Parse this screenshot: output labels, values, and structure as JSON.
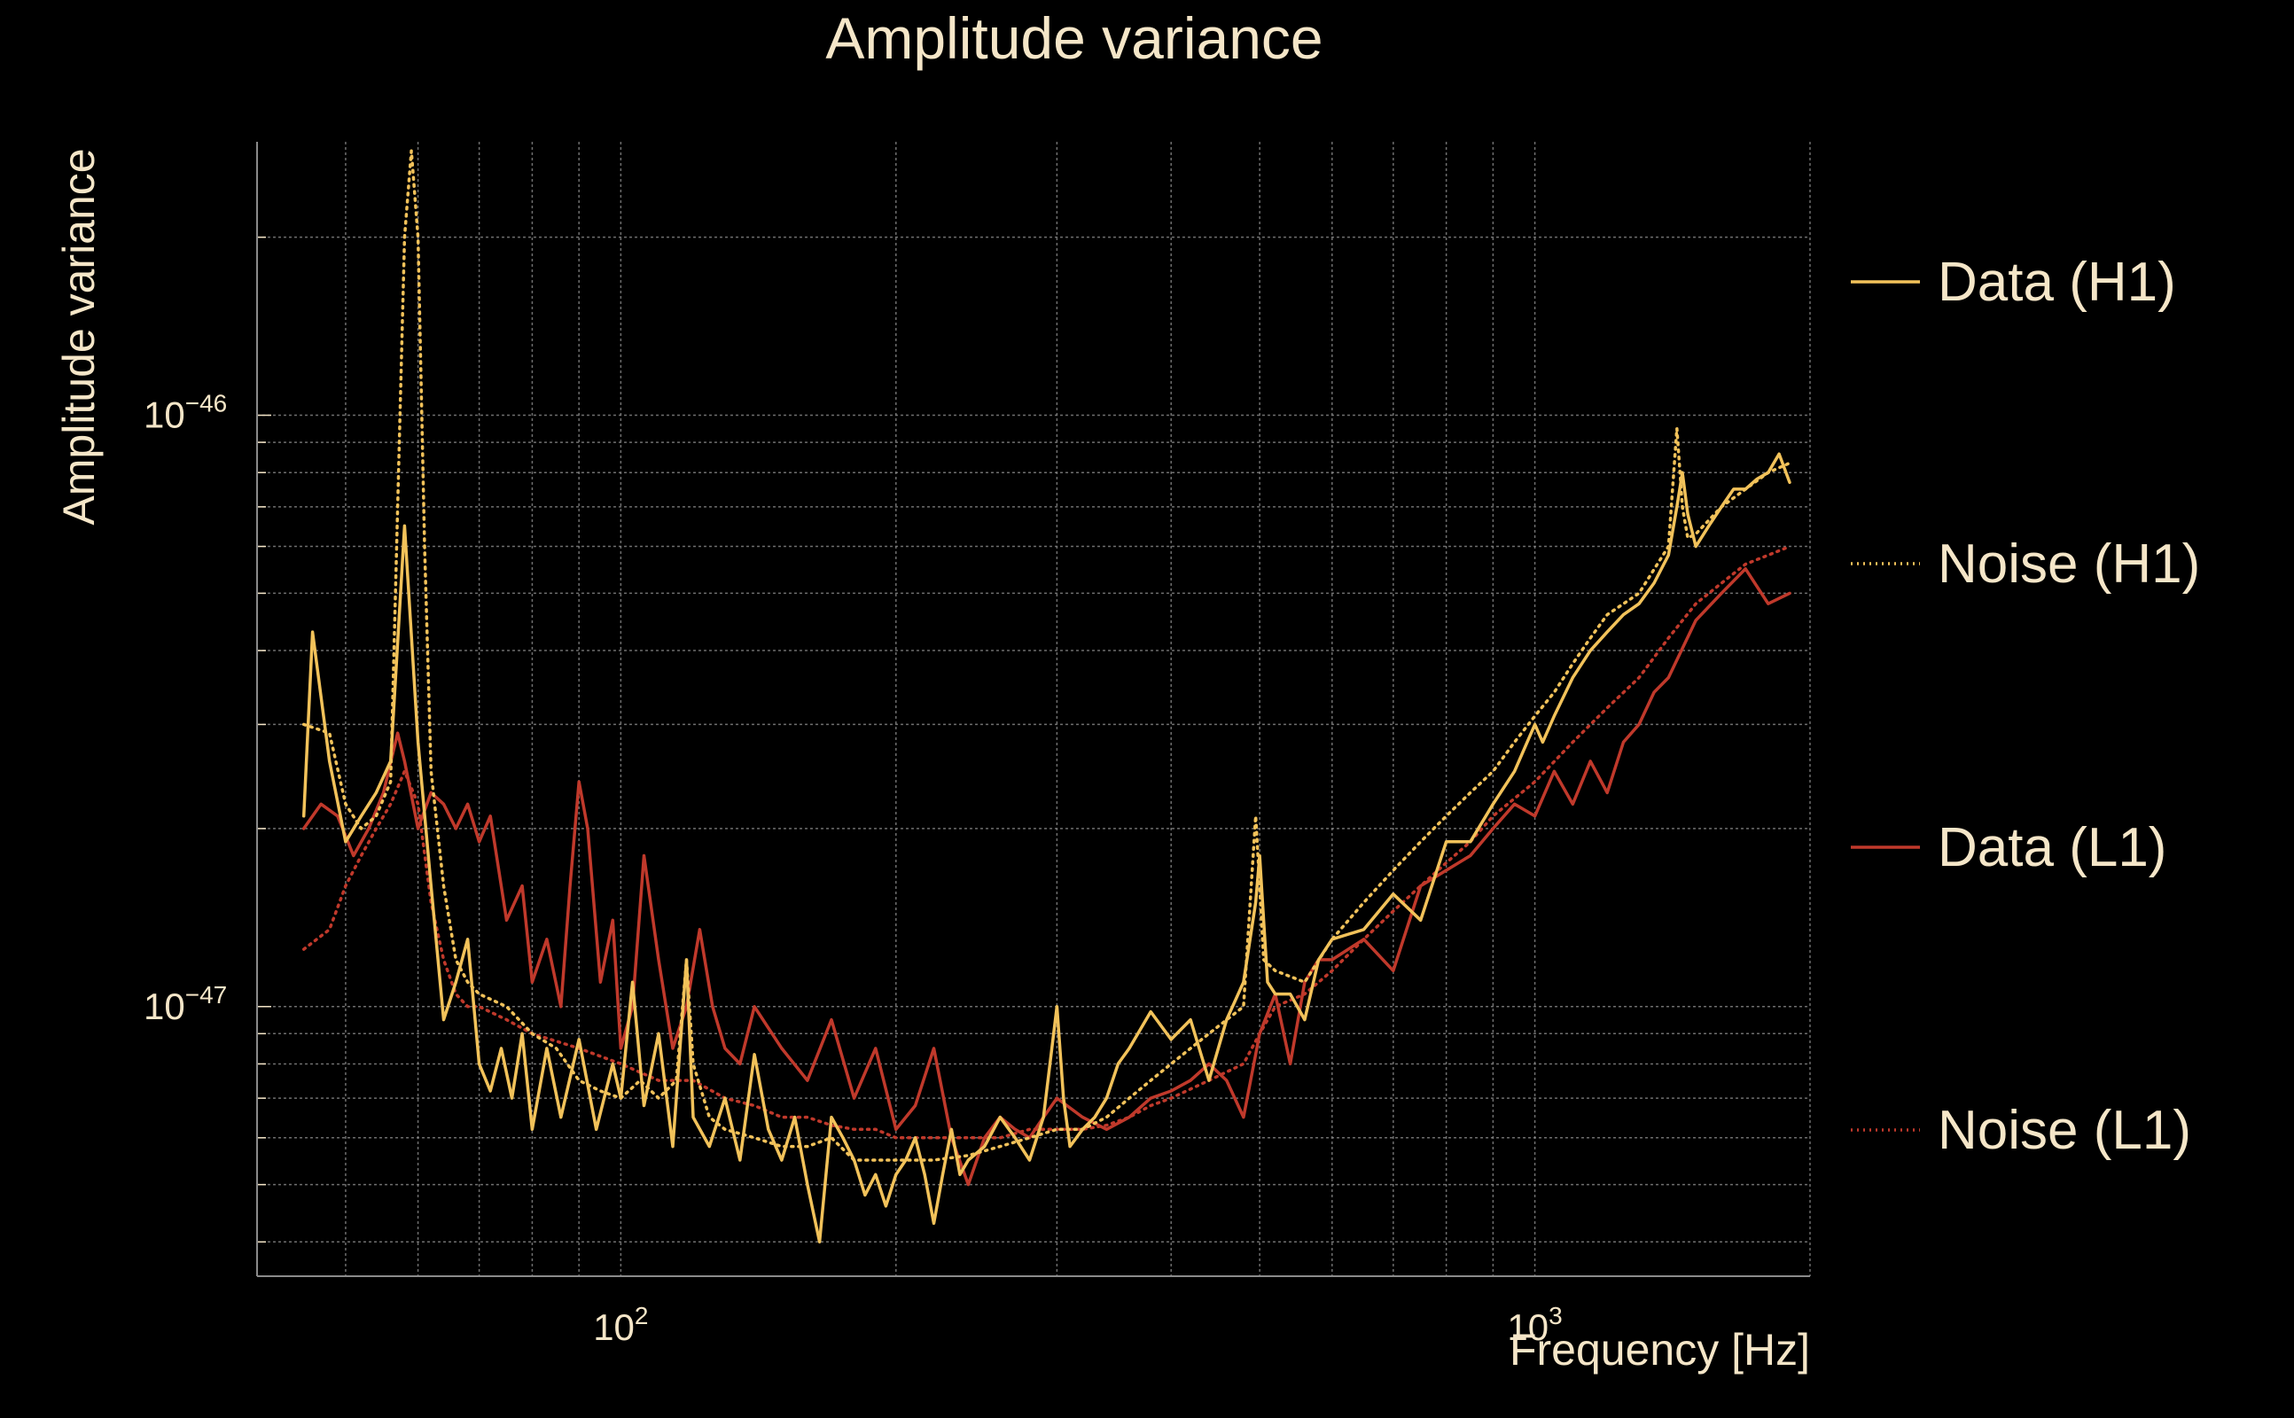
{
  "chart_data": {
    "type": "line",
    "title": "Amplitude variance",
    "xlabel": "Frequency [Hz]",
    "ylabel": "Amplitude variance",
    "x_scale": "log",
    "y_scale": "log",
    "xlim": [
      40,
      2000
    ],
    "ylim": [
      3.5e-48,
      2.9e-46
    ],
    "x_tick_labels": [
      {
        "base": "10",
        "exp": "2",
        "value": 100
      },
      {
        "base": "10",
        "exp": "3",
        "value": 1000
      }
    ],
    "y_tick_labels": [
      {
        "base": "10",
        "exp": "−46",
        "value": 1e-46
      },
      {
        "base": "10",
        "exp": "−47",
        "value": 1e-47
      }
    ],
    "grid": true,
    "legend_position": "right",
    "colors": {
      "background": "#000000",
      "text": "#f5e6c8",
      "grid": "#8a8a8a",
      "h1": "#f2c25a",
      "l1": "#c0392b"
    },
    "series": [
      {
        "name": "Data (H1)",
        "color": "#f2c25a",
        "dash": "solid",
        "x": [
          45,
          46,
          48,
          50,
          52,
          54,
          56,
          58,
          60,
          62,
          64,
          66,
          68,
          70,
          72,
          74,
          76,
          78,
          80,
          83,
          86,
          90,
          94,
          98,
          100,
          103,
          106,
          110,
          114,
          118,
          120,
          125,
          130,
          135,
          140,
          145,
          150,
          155,
          160,
          165,
          170,
          175,
          180,
          185,
          190,
          195,
          200,
          205,
          210,
          215,
          220,
          225,
          230,
          235,
          240,
          250,
          260,
          270,
          280,
          290,
          300,
          305,
          310,
          320,
          330,
          340,
          350,
          360,
          380,
          400,
          420,
          440,
          460,
          480,
          495,
          500,
          505,
          510,
          520,
          540,
          560,
          580,
          600,
          650,
          700,
          750,
          800,
          850,
          900,
          950,
          1000,
          1020,
          1050,
          1100,
          1150,
          1200,
          1250,
          1300,
          1350,
          1400,
          1430,
          1450,
          1470,
          1500,
          1550,
          1600,
          1650,
          1700,
          1750,
          1800,
          1850,
          1900
        ],
        "y": [
          2.1e-47,
          4.3e-47,
          2.6e-47,
          1.9e-47,
          2.1e-47,
          2.3e-47,
          2.6e-47,
          6.5e-47,
          2.8e-47,
          1.6e-47,
          9.5e-48,
          1.1e-47,
          1.3e-47,
          8e-48,
          7.2e-48,
          8.5e-48,
          7e-48,
          9e-48,
          6.2e-48,
          8.5e-48,
          6.5e-48,
          8.8e-48,
          6.2e-48,
          8e-48,
          7e-48,
          1.1e-47,
          6.8e-48,
          9e-48,
          5.8e-48,
          1.2e-47,
          6.5e-48,
          5.8e-48,
          7e-48,
          5.5e-48,
          8.3e-48,
          6.2e-48,
          5.5e-48,
          6.5e-48,
          5e-48,
          4e-48,
          6.5e-48,
          6e-48,
          5.5e-48,
          4.8e-48,
          5.2e-48,
          4.6e-48,
          5.2e-48,
          5.5e-48,
          6e-48,
          5.2e-48,
          4.3e-48,
          5.2e-48,
          6.2e-48,
          5.2e-48,
          5.5e-48,
          5.8e-48,
          6.5e-48,
          6e-48,
          5.5e-48,
          6.5e-48,
          1e-47,
          7e-48,
          5.8e-48,
          6.2e-48,
          6.5e-48,
          7e-48,
          8e-48,
          8.5e-48,
          9.8e-48,
          8.8e-48,
          9.5e-48,
          7.5e-48,
          9.5e-48,
          1.1e-47,
          1.5e-47,
          1.8e-47,
          1.4e-47,
          1.1e-47,
          1.05e-47,
          1.05e-47,
          9.5e-48,
          1.2e-47,
          1.3e-47,
          1.35e-47,
          1.55e-47,
          1.4e-47,
          1.9e-47,
          1.9e-47,
          2.2e-47,
          2.5e-47,
          3e-47,
          2.8e-47,
          3.1e-47,
          3.6e-47,
          4e-47,
          4.3e-47,
          4.6e-47,
          4.8e-47,
          5.2e-47,
          5.8e-47,
          7e-47,
          8e-47,
          6.8e-47,
          6e-47,
          6.5e-47,
          7e-47,
          7.5e-47,
          7.5e-47,
          7.8e-47,
          8e-47,
          8.6e-47,
          7.7e-47
        ]
      },
      {
        "name": "Noise (H1)",
        "color": "#f2c25a",
        "dash": "dotted",
        "x": [
          45,
          48,
          50,
          52,
          54,
          56,
          58,
          59,
          60,
          61,
          62,
          64,
          66,
          68,
          70,
          75,
          80,
          85,
          90,
          95,
          100,
          105,
          110,
          115,
          118,
          120,
          125,
          130,
          140,
          150,
          160,
          170,
          180,
          190,
          200,
          220,
          240,
          260,
          280,
          300,
          320,
          340,
          360,
          380,
          400,
          440,
          480,
          495,
          500,
          505,
          520,
          560,
          600,
          650,
          700,
          750,
          800,
          850,
          900,
          950,
          1000,
          1050,
          1100,
          1150,
          1200,
          1300,
          1400,
          1430,
          1450,
          1470,
          1500,
          1600,
          1700,
          1800,
          1900
        ],
        "y": [
          3e-47,
          2.9e-47,
          2.2e-47,
          2e-47,
          2.1e-47,
          2.4e-47,
          2e-46,
          2.8e-46,
          2e-46,
          6e-47,
          2.5e-47,
          1.6e-47,
          1.2e-47,
          1.1e-47,
          1.05e-47,
          1e-47,
          9e-48,
          8.5e-48,
          7.5e-48,
          7.2e-48,
          7e-48,
          7.5e-48,
          7e-48,
          7.5e-48,
          1.2e-47,
          8e-48,
          6.5e-48,
          6.2e-48,
          6e-48,
          5.8e-48,
          5.8e-48,
          6e-48,
          5.5e-48,
          5.5e-48,
          5.5e-48,
          5.5e-48,
          5.6e-48,
          5.8e-48,
          6e-48,
          6.2e-48,
          6.2e-48,
          6.5e-48,
          7e-48,
          7.5e-48,
          8e-48,
          9e-48,
          1e-47,
          2.1e-47,
          1.6e-47,
          1.2e-47,
          1.15e-47,
          1.1e-47,
          1.3e-47,
          1.5e-47,
          1.7e-47,
          1.9e-47,
          2.1e-47,
          2.3e-47,
          2.5e-47,
          2.8e-47,
          3.1e-47,
          3.4e-47,
          3.8e-47,
          4.2e-47,
          4.6e-47,
          5e-47,
          6e-47,
          9.5e-47,
          7e-47,
          6.2e-47,
          6.3e-47,
          7e-47,
          7.5e-47,
          8e-47,
          8.3e-47
        ]
      },
      {
        "name": "Data (L1)",
        "color": "#c0392b",
        "dash": "solid",
        "x": [
          45,
          47,
          49,
          51,
          53,
          55,
          57,
          58,
          60,
          62,
          64,
          66,
          68,
          70,
          72,
          75,
          78,
          80,
          83,
          86,
          88,
          90,
          92,
          95,
          98,
          100,
          103,
          106,
          110,
          114,
          118,
          122,
          126,
          130,
          135,
          140,
          150,
          160,
          170,
          180,
          190,
          200,
          210,
          220,
          230,
          240,
          250,
          260,
          270,
          280,
          290,
          300,
          320,
          340,
          360,
          380,
          400,
          420,
          440,
          460,
          480,
          500,
          520,
          540,
          560,
          580,
          600,
          650,
          700,
          750,
          800,
          850,
          900,
          950,
          1000,
          1050,
          1100,
          1150,
          1200,
          1250,
          1300,
          1350,
          1400,
          1500,
          1600,
          1700,
          1800,
          1900
        ],
        "y": [
          2e-47,
          2.2e-47,
          2.1e-47,
          1.8e-47,
          2e-47,
          2.3e-47,
          2.9e-47,
          2.6e-47,
          2e-47,
          2.3e-47,
          2.2e-47,
          2e-47,
          2.2e-47,
          1.9e-47,
          2.1e-47,
          1.4e-47,
          1.6e-47,
          1.1e-47,
          1.3e-47,
          1e-47,
          1.6e-47,
          2.4e-47,
          2e-47,
          1.1e-47,
          1.4e-47,
          8.5e-48,
          1e-47,
          1.8e-47,
          1.2e-47,
          8.5e-48,
          1e-47,
          1.35e-47,
          1e-47,
          8.5e-48,
          8e-48,
          1e-47,
          8.5e-48,
          7.5e-48,
          9.5e-48,
          7e-48,
          8.5e-48,
          6.2e-48,
          6.8e-48,
          8.5e-48,
          6e-48,
          5e-48,
          6e-48,
          6.5e-48,
          6.2e-48,
          6e-48,
          6.5e-48,
          7e-48,
          6.5e-48,
          6.2e-48,
          6.5e-48,
          7e-48,
          7.2e-48,
          7.5e-48,
          8e-48,
          7.5e-48,
          6.5e-48,
          9e-48,
          1.05e-47,
          8e-48,
          1.1e-47,
          1.2e-47,
          1.2e-47,
          1.3e-47,
          1.15e-47,
          1.6e-47,
          1.7e-47,
          1.8e-47,
          2e-47,
          2.2e-47,
          2.1e-47,
          2.5e-47,
          2.2e-47,
          2.6e-47,
          2.3e-47,
          2.8e-47,
          3e-47,
          3.4e-47,
          3.6e-47,
          4.5e-47,
          5e-47,
          5.5e-47,
          4.8e-47,
          5e-47
        ]
      },
      {
        "name": "Noise (L1)",
        "color": "#c0392b",
        "dash": "dotted",
        "x": [
          45,
          48,
          50,
          52,
          54,
          56,
          58,
          60,
          62,
          64,
          66,
          68,
          70,
          75,
          80,
          90,
          100,
          110,
          120,
          130,
          140,
          150,
          160,
          170,
          180,
          190,
          200,
          220,
          240,
          260,
          280,
          300,
          320,
          340,
          360,
          380,
          400,
          440,
          480,
          500,
          520,
          560,
          600,
          650,
          700,
          750,
          800,
          850,
          900,
          1000,
          1100,
          1200,
          1300,
          1400,
          1500,
          1600,
          1700,
          1800,
          1900
        ],
        "y": [
          1.25e-47,
          1.35e-47,
          1.6e-47,
          1.8e-47,
          2e-47,
          2.2e-47,
          2.5e-47,
          2.2e-47,
          1.5e-47,
          1.2e-47,
          1.05e-47,
          1e-47,
          1e-47,
          9.5e-48,
          9e-48,
          8.5e-48,
          8e-48,
          7.5e-48,
          7.5e-48,
          7e-48,
          6.8e-48,
          6.5e-48,
          6.5e-48,
          6.3e-48,
          6.2e-48,
          6.2e-48,
          6e-48,
          6e-48,
          6e-48,
          6e-48,
          6.2e-48,
          6.2e-48,
          6.2e-48,
          6.3e-48,
          6.5e-48,
          6.8e-48,
          7e-48,
          7.5e-48,
          8e-48,
          9e-48,
          1e-47,
          1.05e-47,
          1.15e-47,
          1.3e-47,
          1.45e-47,
          1.6e-47,
          1.75e-47,
          1.9e-47,
          2.1e-47,
          2.4e-47,
          2.8e-47,
          3.2e-47,
          3.6e-47,
          4.2e-47,
          4.8e-47,
          5.2e-47,
          5.6e-47,
          5.8e-47,
          6e-47
        ]
      }
    ]
  }
}
